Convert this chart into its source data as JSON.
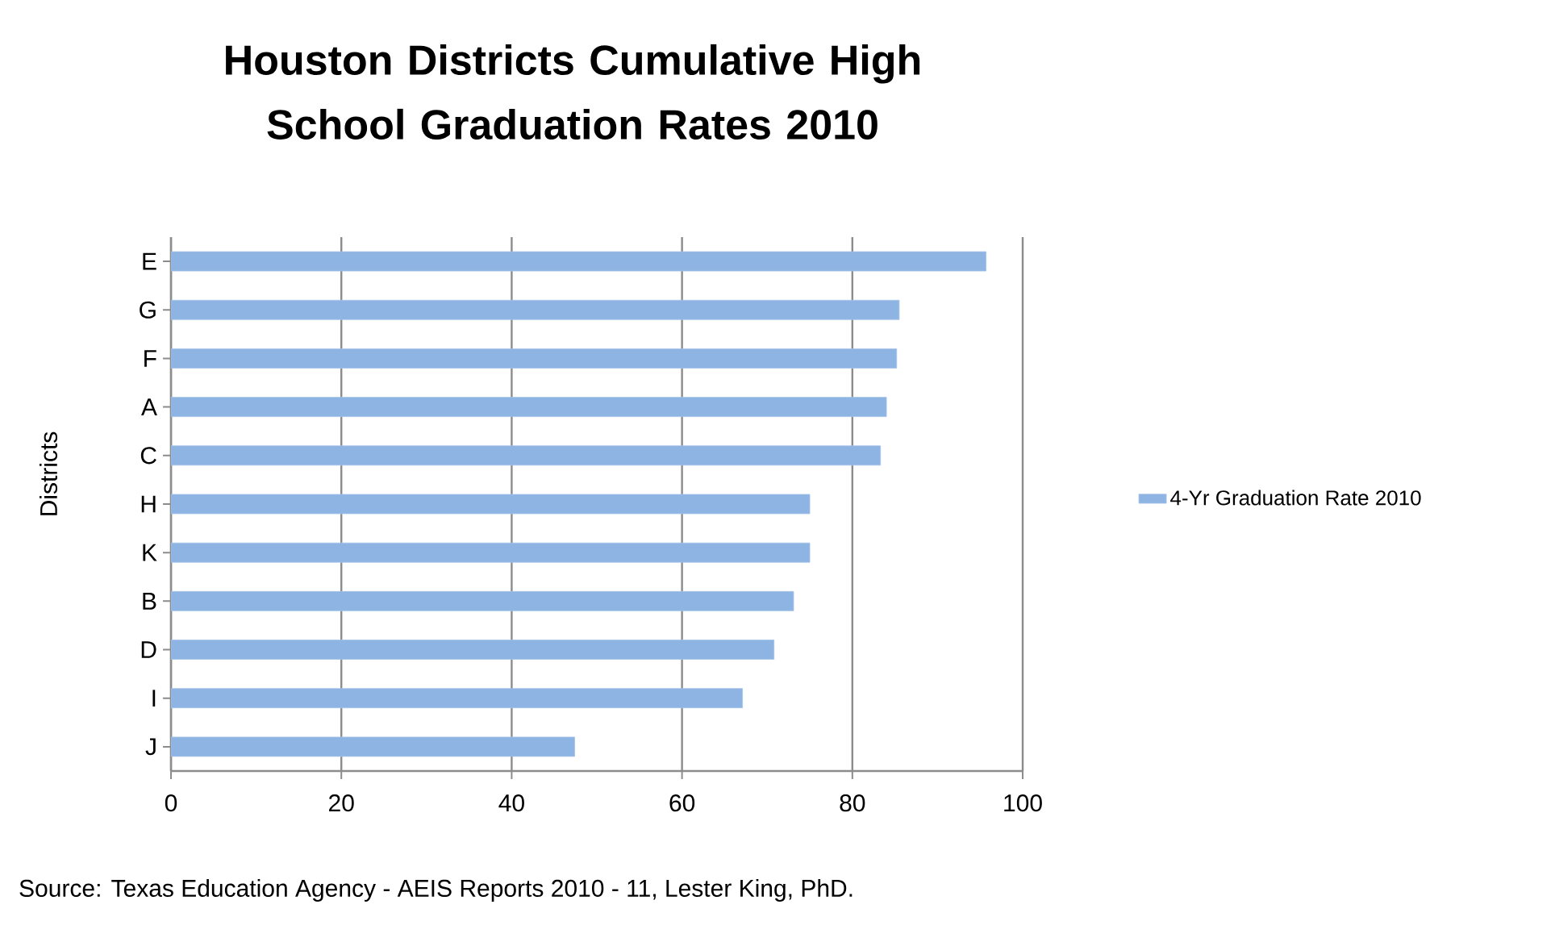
{
  "chart_data": {
    "type": "bar",
    "orientation": "horizontal",
    "title": "Houston Districts Cumulative High School Graduation Rates 2010",
    "ylabel": "Districts",
    "categories": [
      "E",
      "G",
      "F",
      "A",
      "C",
      "H",
      "K",
      "B",
      "D",
      "I",
      "J"
    ],
    "series": [
      {
        "name": "4-Yr Graduation Rate 2010",
        "color": "#8eb4e3",
        "values": [
          95.7,
          85.5,
          85.2,
          84.0,
          83.3,
          75.0,
          75.0,
          73.1,
          70.8,
          67.1,
          47.4
        ]
      }
    ],
    "xlim": [
      0,
      100
    ],
    "xticks": [
      0,
      20,
      40,
      60,
      80,
      100
    ],
    "grid": "x",
    "legend": "right",
    "annotations": [
      "Source: Texas Education Agency - AEIS Reports 2010 - 11, Lester King, PhD."
    ]
  }
}
